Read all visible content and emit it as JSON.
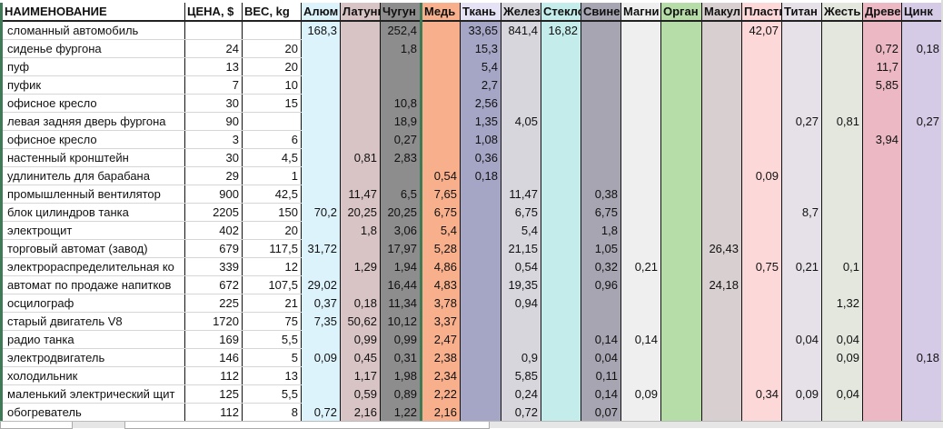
{
  "headers": [
    "НАИМЕНОВАНИЕ",
    "ЦЕНА, $",
    "ВЕС, kg",
    "Алюм",
    "Латунь",
    "Чугун",
    "Медь",
    "Ткань",
    "Желез",
    "Стекло",
    "Свинец",
    "Магни",
    "Орган",
    "Макул",
    "Пласти",
    "Титан",
    "Жесть",
    "Древе",
    "Цинк"
  ],
  "column_colors": [
    "#ffffff",
    "#ffffff",
    "#ffffff",
    "#ddf3fb",
    "#d8c3c5",
    "#8d8d8d",
    "#f8af8c",
    "#a5a5c6",
    "#d7d6dc",
    "#c3ecea",
    "#a6a5b1",
    "#efefef",
    "#b6dca8",
    "#d8cfd0",
    "#fdd8d9",
    "#e6e0e8",
    "#e3e7dd",
    "#ebb8c3",
    "#d6cbe6"
  ],
  "rows": [
    [
      "сломанный автомобиль",
      "",
      "",
      "168,3",
      "",
      "252,4",
      "",
      "33,65",
      "841,4",
      "16,82",
      "",
      "",
      "",
      "",
      "42,07",
      "",
      "",
      "",
      ""
    ],
    [
      "сиденье фургона",
      "24",
      "20",
      "",
      "",
      "1,8",
      "",
      "15,3",
      "",
      "",
      "",
      "",
      "",
      "",
      "",
      "",
      "",
      "0,72",
      "0,18"
    ],
    [
      "пуф",
      "13",
      "20",
      "",
      "",
      "",
      "",
      "5,4",
      "",
      "",
      "",
      "",
      "",
      "",
      "",
      "",
      "",
      "11,7",
      ""
    ],
    [
      "пуфик",
      "7",
      "10",
      "",
      "",
      "",
      "",
      "2,7",
      "",
      "",
      "",
      "",
      "",
      "",
      "",
      "",
      "",
      "5,85",
      ""
    ],
    [
      "офисное кресло",
      "30",
      "15",
      "",
      "",
      "10,8",
      "",
      "2,56",
      "",
      "",
      "",
      "",
      "",
      "",
      "",
      "",
      "",
      "",
      ""
    ],
    [
      "левая задняя дверь фургона",
      "90",
      "",
      "",
      "",
      "18,9",
      "",
      "1,35",
      "4,05",
      "",
      "",
      "",
      "",
      "",
      "",
      "0,27",
      "0,81",
      "",
      "0,27"
    ],
    [
      "офисное кресло",
      "3",
      "6",
      "",
      "",
      "0,27",
      "",
      "1,08",
      "",
      "",
      "",
      "",
      "",
      "",
      "",
      "",
      "",
      "3,94",
      ""
    ],
    [
      "настенный кронштейн",
      "30",
      "4,5",
      "",
      "0,81",
      "2,83",
      "",
      "0,36",
      "",
      "",
      "",
      "",
      "",
      "",
      "",
      "",
      "",
      "",
      ""
    ],
    [
      "удлинитель для барабана",
      "29",
      "1",
      "",
      "",
      "",
      "0,54",
      "0,18",
      "",
      "",
      "",
      "",
      "",
      "",
      "0,09",
      "",
      "",
      "",
      ""
    ],
    [
      "промышленный вентилятор",
      "900",
      "42,5",
      "",
      "11,47",
      "6,5",
      "7,65",
      "",
      "11,47",
      "",
      "0,38",
      "",
      "",
      "",
      "",
      "",
      "",
      "",
      ""
    ],
    [
      "блок цилиндров танка",
      "2205",
      "150",
      "70,2",
      "20,25",
      "20,25",
      "6,75",
      "",
      "6,75",
      "",
      "6,75",
      "",
      "",
      "",
      "",
      "8,7",
      "",
      "",
      ""
    ],
    [
      "электрощит",
      "402",
      "20",
      "",
      "1,8",
      "3,06",
      "5,4",
      "",
      "5,4",
      "",
      "1,8",
      "",
      "",
      "",
      "",
      "",
      "",
      "",
      ""
    ],
    [
      "торговый автомат (завод)",
      "679",
      "117,5",
      "31,72",
      "",
      "17,97",
      "5,28",
      "",
      "21,15",
      "",
      "1,05",
      "",
      "",
      "26,43",
      "",
      "",
      "",
      "",
      ""
    ],
    [
      "электрораспределительная ко",
      "339",
      "12",
      "",
      "1,29",
      "1,94",
      "4,86",
      "",
      "0,54",
      "",
      "0,32",
      "0,21",
      "",
      "",
      "0,75",
      "0,21",
      "0,1",
      "",
      ""
    ],
    [
      "автомат по продаже напитков",
      "672",
      "107,5",
      "29,02",
      "",
      "16,44",
      "4,83",
      "",
      "19,35",
      "",
      "0,96",
      "",
      "",
      "24,18",
      "",
      "",
      "",
      "",
      ""
    ],
    [
      "осцилограф",
      "225",
      "21",
      "0,37",
      "0,18",
      "11,34",
      "3,78",
      "",
      "0,94",
      "",
      "",
      "",
      "",
      "",
      "",
      "",
      "1,32",
      "",
      ""
    ],
    [
      "старый двигатель V8",
      "1720",
      "75",
      "7,35",
      "50,62",
      "10,12",
      "3,37",
      "",
      "",
      "",
      "",
      "",
      "",
      "",
      "",
      "",
      "",
      "",
      ""
    ],
    [
      "радио танка",
      "169",
      "5,5",
      "",
      "0,99",
      "0,99",
      "2,47",
      "",
      "",
      "",
      "0,14",
      "0,14",
      "",
      "",
      "",
      "0,04",
      "0,04",
      "",
      ""
    ],
    [
      "электродвигатель",
      "146",
      "5",
      "0,09",
      "0,45",
      "0,31",
      "2,38",
      "",
      "0,9",
      "",
      "0,04",
      "",
      "",
      "",
      "",
      "",
      "0,09",
      "",
      "0,18"
    ],
    [
      "холодильник",
      "112",
      "13",
      "",
      "1,17",
      "1,98",
      "2,34",
      "",
      "5,85",
      "",
      "0,11",
      "",
      "",
      "",
      "",
      "",
      "",
      "",
      ""
    ],
    [
      "маленький электрический щит",
      "125",
      "5,5",
      "",
      "0,59",
      "0,89",
      "2,22",
      "",
      "0,24",
      "",
      "0,14",
      "0,09",
      "",
      "",
      "0,34",
      "0,09",
      "0,04",
      "",
      ""
    ],
    [
      "обогреватель",
      "112",
      "8",
      "0,72",
      "2,16",
      "1,22",
      "2,16",
      "",
      "0,72",
      "",
      "0,07",
      "",
      "",
      "",
      "",
      "",
      "",
      "",
      ""
    ]
  ]
}
